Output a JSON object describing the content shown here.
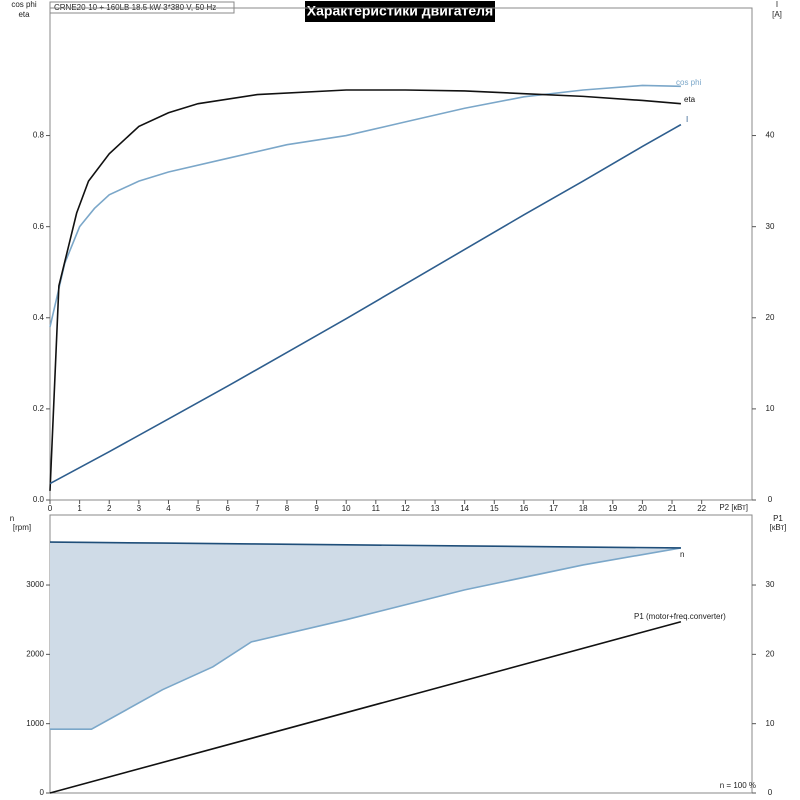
{
  "chart_data": [
    {
      "type": "line",
      "title": "Характеристики двигателя",
      "subtitle": "CRNE20-10 + 160LB   18.5 kW   3*380 V, 50 Hz",
      "xlabel": "P2 [кВт]",
      "ylabel": [
        "cos phi",
        "eta"
      ],
      "y2label": [
        "I",
        "[A]"
      ],
      "xlim": [
        0,
        23.7
      ],
      "ylim": [
        0,
        1.08
      ],
      "y2lim": [
        0,
        54
      ],
      "xticks": [
        0,
        1,
        2,
        3,
        4,
        5,
        6,
        7,
        8,
        9,
        10,
        11,
        12,
        13,
        14,
        15,
        16,
        17,
        18,
        19,
        20,
        21,
        22
      ],
      "yticks": [
        {
          "value": 0,
          "label": "0.0"
        },
        {
          "value": 0.2,
          "label": "0.2"
        },
        {
          "value": 0.4,
          "label": "0.4"
        },
        {
          "value": 0.6,
          "label": "0.6"
        },
        {
          "value": 0.8,
          "label": "0.8"
        }
      ],
      "y2ticks": [
        0,
        10,
        20,
        30,
        40
      ],
      "series": [
        {
          "name": "cos phi",
          "color": "#7ba7c9",
          "x": [
            0,
            0.5,
            1,
            1.5,
            2,
            3,
            4,
            6,
            8,
            10,
            12,
            14,
            16,
            18,
            20,
            21.3
          ],
          "values": [
            0.38,
            0.52,
            0.6,
            0.64,
            0.67,
            0.7,
            0.72,
            0.75,
            0.78,
            0.8,
            0.83,
            0.86,
            0.885,
            0.9,
            0.91,
            0.908
          ]
        },
        {
          "name": "eta",
          "color": "#111111",
          "x": [
            0,
            0.3,
            0.9,
            1.3,
            2,
            3,
            4,
            5,
            7,
            10,
            12,
            14,
            16,
            18,
            20,
            21.3
          ],
          "values": [
            0.02,
            0.47,
            0.63,
            0.7,
            0.76,
            0.82,
            0.85,
            0.87,
            0.89,
            0.9,
            0.9,
            0.898,
            0.892,
            0.886,
            0.877,
            0.87
          ]
        },
        {
          "name": "I",
          "color": "#2e5e8e",
          "axis": "y2",
          "x": [
            0,
            2,
            4,
            6,
            8,
            10,
            12,
            14,
            16,
            18,
            20,
            21.3
          ],
          "values": [
            1.8,
            5.3,
            8.9,
            12.5,
            16.2,
            19.9,
            23.7,
            27.5,
            31.3,
            35.0,
            38.8,
            41.2
          ]
        }
      ]
    },
    {
      "type": "line",
      "ylabel": [
        "n",
        "[rpm]"
      ],
      "y2label": [
        "P1",
        "[кВт]"
      ],
      "annotation": "n = 100 %",
      "xlim": [
        0,
        23.7
      ],
      "ylim": [
        0,
        4010
      ],
      "y2lim": [
        0,
        40.1
      ],
      "yticks": [
        0,
        1000,
        2000,
        3000
      ],
      "y2ticks": [
        0,
        10,
        20,
        30
      ],
      "series": [
        {
          "name": "n",
          "color": "#1f4e79",
          "fill": "#cfdbe7",
          "x": [
            0,
            1.4,
            3.8,
            5.5,
            6.8,
            10,
            14,
            18,
            21.3
          ],
          "values": [
            3620,
            3614,
            3605,
            3598,
            3593,
            3580,
            3564,
            3548,
            3535
          ],
          "min_values": [
            920,
            920,
            1490,
            1820,
            2180,
            2500,
            2930,
            3290,
            3535
          ]
        },
        {
          "name": "P1 (motor+freq.converter)",
          "color": "#111111",
          "axis": "y2",
          "x": [
            0,
            21.3
          ],
          "values": [
            0,
            24.7
          ]
        }
      ]
    }
  ]
}
